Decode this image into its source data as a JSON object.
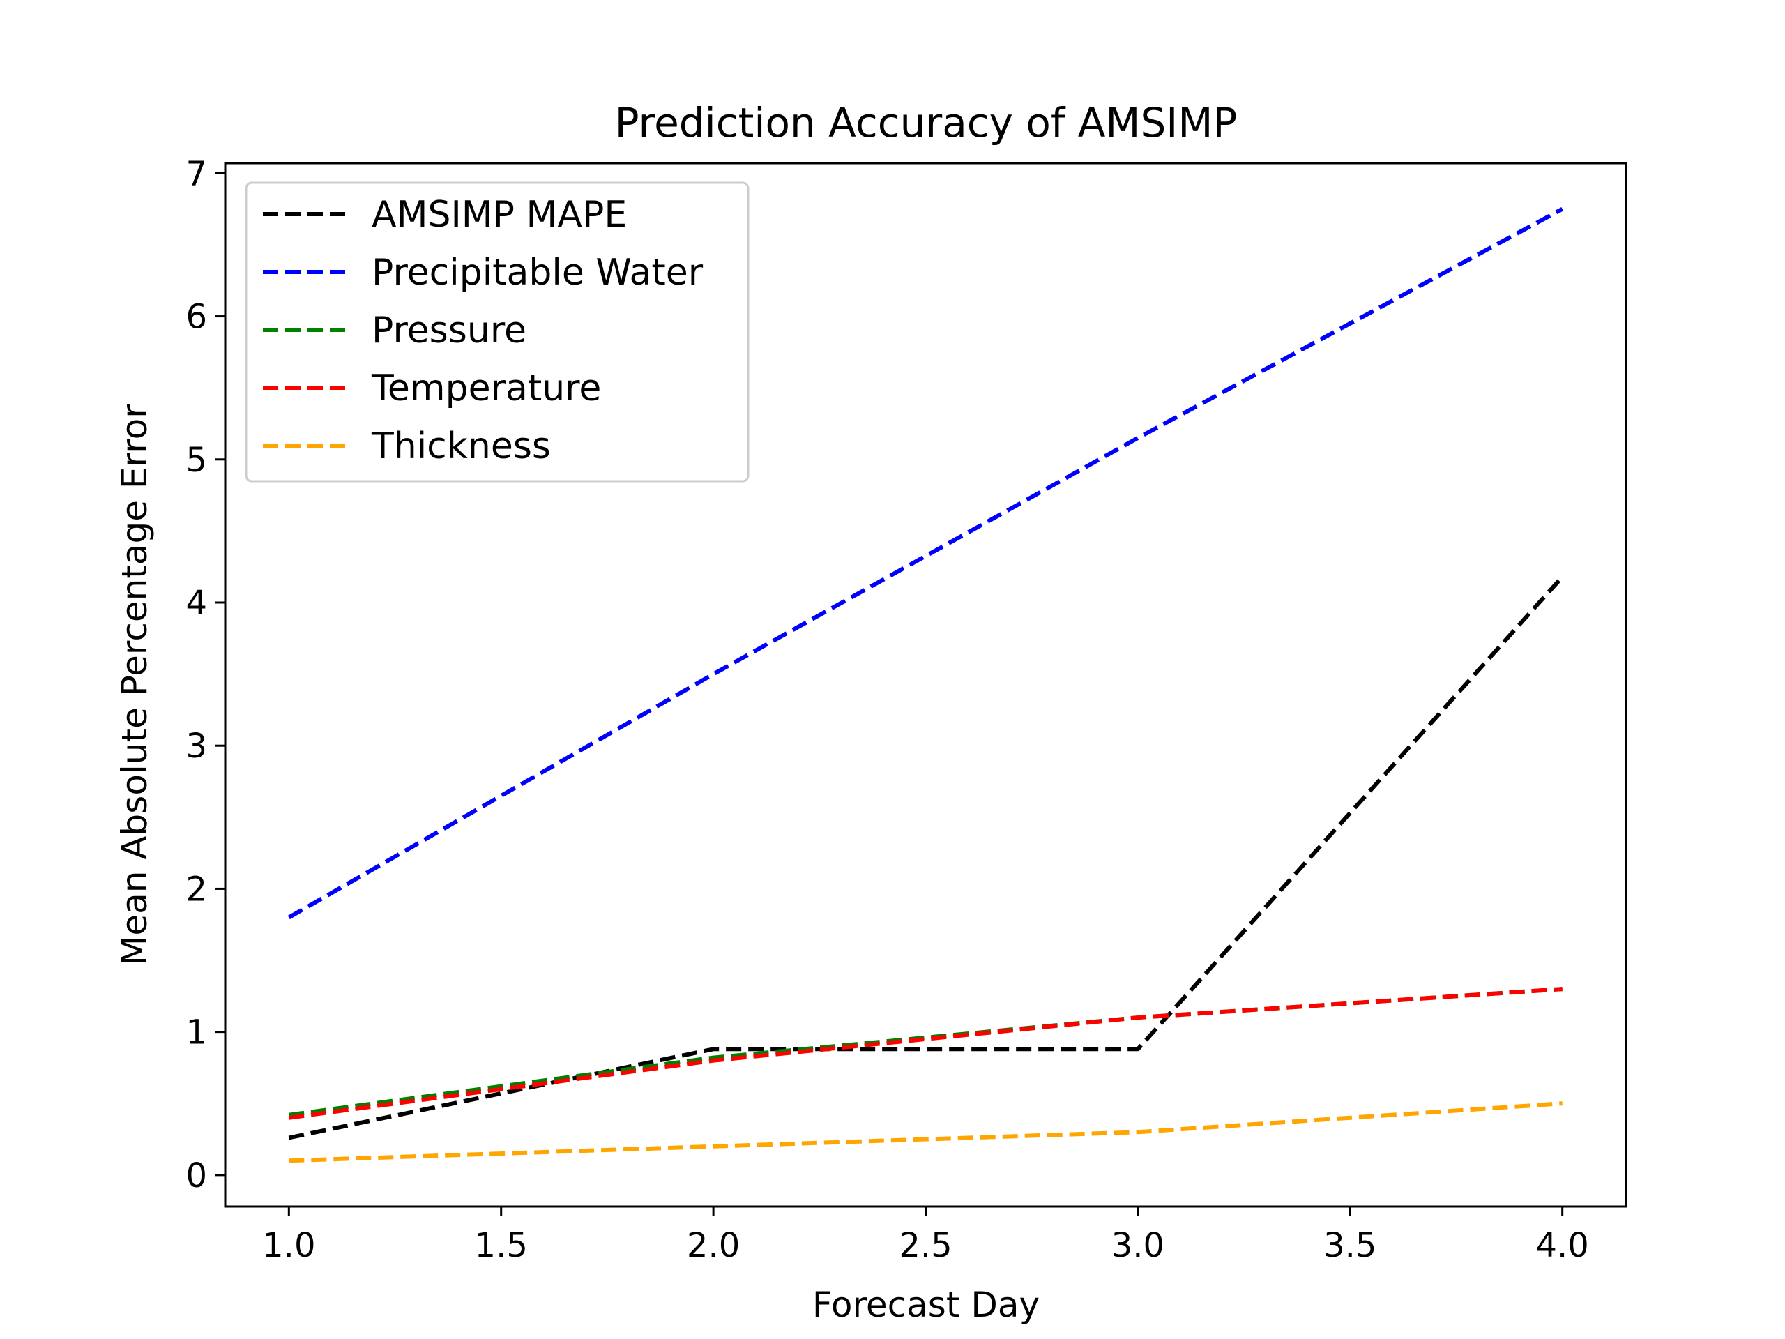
{
  "chart_data": {
    "type": "line",
    "title": "Prediction Accuracy of AMSIMP",
    "xlabel": "Forecast Day",
    "ylabel": "Mean Absolute Percentage Error",
    "xlim": [
      0.85,
      4.15
    ],
    "ylim": [
      -0.22,
      7.07
    ],
    "x_ticks": [
      1.0,
      1.5,
      2.0,
      2.5,
      3.0,
      3.5,
      4.0
    ],
    "x_tick_labels": [
      "1.0",
      "1.5",
      "2.0",
      "2.5",
      "3.0",
      "3.5",
      "4.0"
    ],
    "y_ticks": [
      0,
      1,
      2,
      3,
      4,
      5,
      6,
      7
    ],
    "y_tick_labels": [
      "0",
      "1",
      "2",
      "3",
      "4",
      "5",
      "6",
      "7"
    ],
    "grid": false,
    "legend_position": "top-left",
    "line_style": "dashed",
    "x": [
      1,
      2,
      3,
      4
    ],
    "series": [
      {
        "name": "AMSIMP MAPE",
        "color": "#000000",
        "values": [
          0.26,
          0.88,
          0.88,
          4.18
        ]
      },
      {
        "name": "Precipitable Water",
        "color": "#0000ff",
        "values": [
          1.8,
          3.5,
          5.15,
          6.75
        ]
      },
      {
        "name": "Pressure",
        "color": "#008000",
        "values": [
          0.42,
          0.82,
          1.1,
          1.3
        ]
      },
      {
        "name": "Temperature",
        "color": "#ff0000",
        "values": [
          0.4,
          0.8,
          1.1,
          1.3
        ]
      },
      {
        "name": "Thickness",
        "color": "#ffa500",
        "values": [
          0.1,
          0.2,
          0.3,
          0.5
        ]
      }
    ]
  }
}
